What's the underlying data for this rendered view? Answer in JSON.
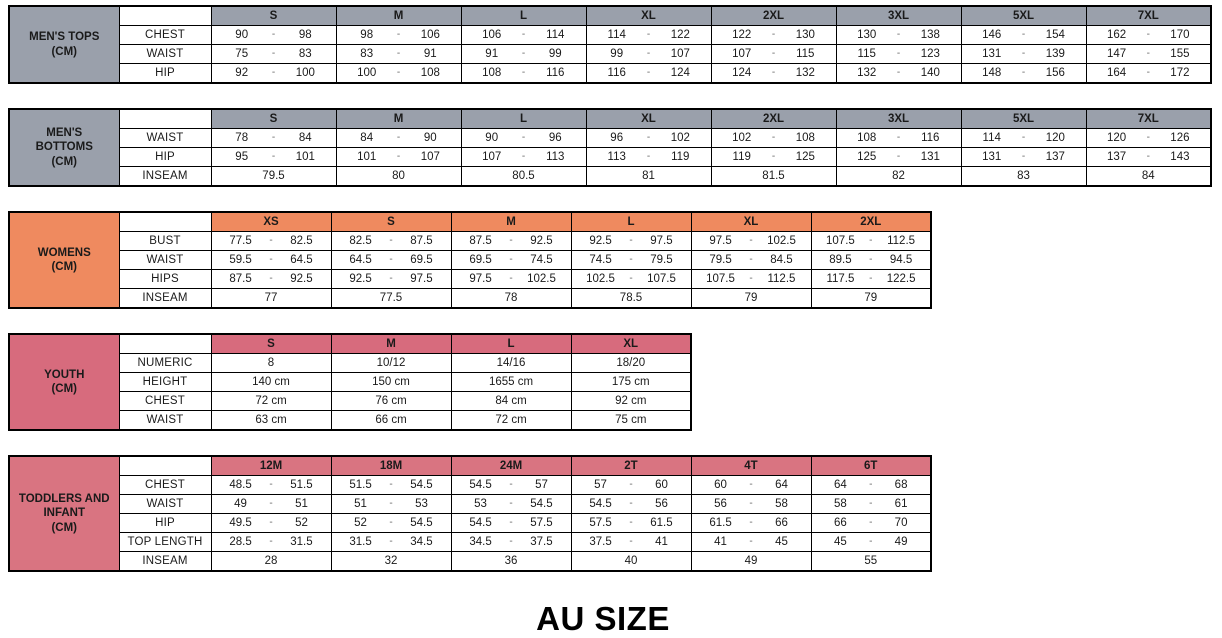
{
  "title": "AU SIZE",
  "colors": {
    "mens_header": "#9aa0ab",
    "womens_header": "#ef8a5f",
    "youth_header": "#d76b7d",
    "toddlers_header": "#d97481",
    "border": "#000000"
  },
  "tables": [
    {
      "id": "mens-tops",
      "label_lines": [
        "MEN'S TOPS",
        "(CM)"
      ],
      "header_color": "#9aa0ab",
      "sizes": [
        "S",
        "M",
        "L",
        "XL",
        "2XL",
        "3XL",
        "5XL",
        "7XL"
      ],
      "rows": [
        {
          "label": "CHEST",
          "values": [
            [
              "90",
              "98"
            ],
            [
              "98",
              "106"
            ],
            [
              "106",
              "114"
            ],
            [
              "114",
              "122"
            ],
            [
              "122",
              "130"
            ],
            [
              "130",
              "138"
            ],
            [
              "146",
              "154"
            ],
            [
              "162",
              "170"
            ]
          ]
        },
        {
          "label": "WAIST",
          "values": [
            [
              "75",
              "83"
            ],
            [
              "83",
              "91"
            ],
            [
              "91",
              "99"
            ],
            [
              "99",
              "107"
            ],
            [
              "107",
              "115"
            ],
            [
              "115",
              "123"
            ],
            [
              "131",
              "139"
            ],
            [
              "147",
              "155"
            ]
          ]
        },
        {
          "label": "HIP",
          "values": [
            [
              "92",
              "100"
            ],
            [
              "100",
              "108"
            ],
            [
              "108",
              "116"
            ],
            [
              "116",
              "124"
            ],
            [
              "124",
              "132"
            ],
            [
              "132",
              "140"
            ],
            [
              "148",
              "156"
            ],
            [
              "164",
              "172"
            ]
          ]
        }
      ]
    },
    {
      "id": "mens-bottoms",
      "label_lines": [
        "MEN'S",
        "BOTTOMS",
        "(CM)"
      ],
      "header_color": "#9aa0ab",
      "sizes": [
        "S",
        "M",
        "L",
        "XL",
        "2XL",
        "3XL",
        "5XL",
        "7XL"
      ],
      "rows": [
        {
          "label": "WAIST",
          "values": [
            [
              "78",
              "84"
            ],
            [
              "84",
              "90"
            ],
            [
              "90",
              "96"
            ],
            [
              "96",
              "102"
            ],
            [
              "102",
              "108"
            ],
            [
              "108",
              "116"
            ],
            [
              "114",
              "120"
            ],
            [
              "120",
              "126"
            ]
          ]
        },
        {
          "label": "HIP",
          "values": [
            [
              "95",
              "101"
            ],
            [
              "101",
              "107"
            ],
            [
              "107",
              "113"
            ],
            [
              "113",
              "119"
            ],
            [
              "119",
              "125"
            ],
            [
              "125",
              "131"
            ],
            [
              "131",
              "137"
            ],
            [
              "137",
              "143"
            ]
          ]
        },
        {
          "label": "INSEAM",
          "values": [
            "79.5",
            "80",
            "80.5",
            "81",
            "81.5",
            "82",
            "83",
            "84"
          ]
        }
      ]
    },
    {
      "id": "womens",
      "label_lines": [
        "WOMENS",
        "(CM)"
      ],
      "header_color": "#ef8a5f",
      "sizes": [
        "XS",
        "S",
        "M",
        "L",
        "XL",
        "2XL"
      ],
      "rows": [
        {
          "label": "BUST",
          "values": [
            [
              "77.5",
              "82.5"
            ],
            [
              "82.5",
              "87.5"
            ],
            [
              "87.5",
              "92.5"
            ],
            [
              "92.5",
              "97.5"
            ],
            [
              "97.5",
              "102.5"
            ],
            [
              "107.5",
              "112.5"
            ]
          ]
        },
        {
          "label": "WAIST",
          "values": [
            [
              "59.5",
              "64.5"
            ],
            [
              "64.5",
              "69.5"
            ],
            [
              "69.5",
              "74.5"
            ],
            [
              "74.5",
              "79.5"
            ],
            [
              "79.5",
              "84.5"
            ],
            [
              "89.5",
              "94.5"
            ]
          ]
        },
        {
          "label": "HIPS",
          "values": [
            [
              "87.5",
              "92.5"
            ],
            [
              "92.5",
              "97.5"
            ],
            [
              "97.5",
              "102.5"
            ],
            [
              "102.5",
              "107.5"
            ],
            [
              "107.5",
              "112.5"
            ],
            [
              "117.5",
              "122.5"
            ]
          ]
        },
        {
          "label": "INSEAM",
          "values": [
            "77",
            "77.5",
            "78",
            "78.5",
            "79",
            "79"
          ]
        }
      ]
    },
    {
      "id": "youth",
      "label_lines": [
        "YOUTH",
        "(CM)"
      ],
      "header_color": "#d76b7d",
      "sizes": [
        "S",
        "M",
        "L",
        "XL"
      ],
      "rows": [
        {
          "label": "NUMERIC",
          "values": [
            "8",
            "10/12",
            "14/16",
            "18/20"
          ]
        },
        {
          "label": "HEIGHT",
          "values": [
            "140 cm",
            "150 cm",
            "1655 cm",
            "175 cm"
          ]
        },
        {
          "label": "CHEST",
          "values": [
            "72 cm",
            "76 cm",
            "84 cm",
            "92 cm"
          ]
        },
        {
          "label": "WAIST",
          "values": [
            "63 cm",
            "66 cm",
            "72 cm",
            "75 cm"
          ]
        }
      ]
    },
    {
      "id": "toddlers-infant",
      "label_lines": [
        "TODDLERS AND",
        "INFANT",
        "(CM)"
      ],
      "header_color": "#d97481",
      "sizes": [
        "12M",
        "18M",
        "24M",
        "2T",
        "4T",
        "6T"
      ],
      "rows": [
        {
          "label": "CHEST",
          "values": [
            [
              "48.5",
              "51.5"
            ],
            [
              "51.5",
              "54.5"
            ],
            [
              "54.5",
              "57"
            ],
            [
              "57",
              "60"
            ],
            [
              "60",
              "64"
            ],
            [
              "64",
              "68"
            ]
          ]
        },
        {
          "label": "WAIST",
          "values": [
            [
              "49",
              "51"
            ],
            [
              "51",
              "53"
            ],
            [
              "53",
              "54.5"
            ],
            [
              "54.5",
              "56"
            ],
            [
              "56",
              "58"
            ],
            [
              "58",
              "61"
            ]
          ]
        },
        {
          "label": "HIP",
          "values": [
            [
              "49.5",
              "52"
            ],
            [
              "52",
              "54.5"
            ],
            [
              "54.5",
              "57.5"
            ],
            [
              "57.5",
              "61.5"
            ],
            [
              "61.5",
              "66"
            ],
            [
              "66",
              "70"
            ]
          ]
        },
        {
          "label": "TOP LENGTH",
          "values": [
            [
              "28.5",
              "31.5"
            ],
            [
              "31.5",
              "34.5"
            ],
            [
              "34.5",
              "37.5"
            ],
            [
              "37.5",
              "41"
            ],
            [
              "41",
              "45"
            ],
            [
              "45",
              "49"
            ]
          ]
        },
        {
          "label": "INSEAM",
          "values": [
            "28",
            "32",
            "36",
            "40",
            "49",
            "55"
          ]
        }
      ]
    }
  ]
}
